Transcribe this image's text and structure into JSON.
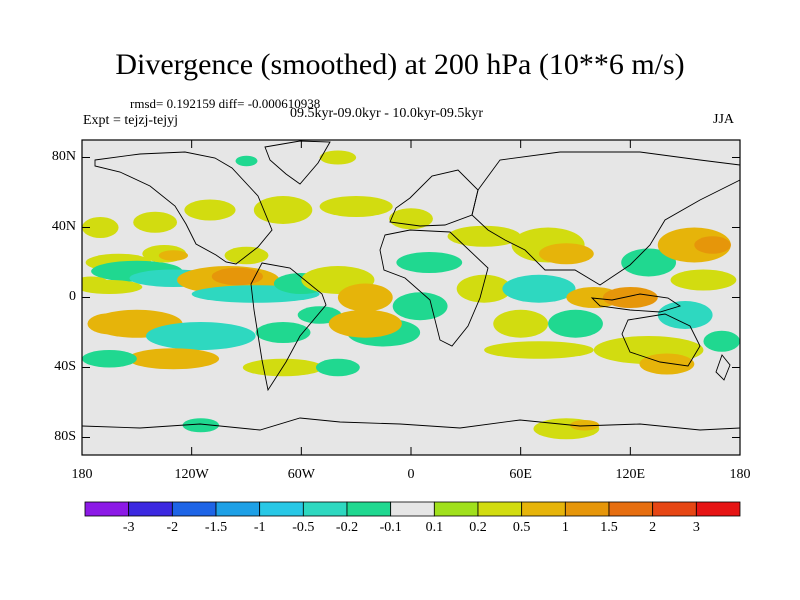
{
  "title": "Divergence (smoothed) at 200 hPa (10**6 m/s)",
  "stats": "rmsd= 0.192159 diff= -0.000610938",
  "subtitle": "09.5kyr-09.0kyr - 10.0kyr-09.5kyr",
  "experiment": "Expt = tejzj-tejyj",
  "season": "JJA",
  "map": {
    "projection": "cylindrical-equidistant",
    "lon_range": [
      -180,
      180
    ],
    "lat_range": [
      -90,
      90
    ],
    "background_color": "#e6e6e6",
    "lat_ticks": [
      {
        "lat": 80,
        "label": "80N"
      },
      {
        "lat": 40,
        "label": "40N"
      },
      {
        "lat": 0,
        "label": "0"
      },
      {
        "lat": -40,
        "label": "40S"
      },
      {
        "lat": -80,
        "label": "80S"
      }
    ],
    "lon_ticks": [
      {
        "lon": -180,
        "label": "180"
      },
      {
        "lon": -120,
        "label": "120W"
      },
      {
        "lon": -60,
        "label": "60W"
      },
      {
        "lon": 0,
        "label": "0"
      },
      {
        "lon": 60,
        "label": "60E"
      },
      {
        "lon": 120,
        "label": "120E"
      },
      {
        "lon": 180,
        "label": "180"
      }
    ]
  },
  "colorbar": {
    "colors": [
      "#8c1ae6",
      "#3c28e0",
      "#1e64e6",
      "#1ea0e6",
      "#28c8e6",
      "#2ed8c0",
      "#20d890",
      "#e6e6e6",
      "#a0e01c",
      "#d2dc10",
      "#e6b40a",
      "#e6960a",
      "#e66e10",
      "#e64614",
      "#e61414"
    ],
    "labels": [
      "-3",
      "-2",
      "-1.5",
      "-1",
      "-0.5",
      "-0.2",
      "-0.1",
      "0.1",
      "0.2",
      "0.5",
      "1",
      "1.5",
      "2",
      "3"
    ]
  },
  "field_blobs": [
    {
      "lon": -160,
      "lat": 20,
      "rlon": 18,
      "rlat": 5,
      "level": 0.2
    },
    {
      "lon": -150,
      "lat": 15,
      "rlon": 25,
      "rlat": 6,
      "level": -0.2
    },
    {
      "lon": -165,
      "lat": 6,
      "rlon": 18,
      "rlat": 4,
      "level": 0.2
    },
    {
      "lon": -175,
      "lat": 8,
      "rlon": 10,
      "rlat": 4,
      "level": 0.2
    },
    {
      "lon": -130,
      "lat": 11,
      "rlon": 24,
      "rlat": 5,
      "level": -0.5
    },
    {
      "lon": -100,
      "lat": 10,
      "rlon": 28,
      "rlat": 8,
      "level": 0.5
    },
    {
      "lon": -95,
      "lat": 12,
      "rlon": 14,
      "rlat": 5,
      "level": 1
    },
    {
      "lon": -90,
      "lat": 24,
      "rlon": 12,
      "rlat": 5,
      "level": 0.2
    },
    {
      "lon": -135,
      "lat": 25,
      "rlon": 12,
      "rlat": 5,
      "level": 0.2
    },
    {
      "lon": -130,
      "lat": 24,
      "rlon": 8,
      "rlat": 3,
      "level": 0.5
    },
    {
      "lon": -170,
      "lat": 40,
      "rlon": 10,
      "rlat": 6,
      "level": 0.2
    },
    {
      "lon": -140,
      "lat": 43,
      "rlon": 12,
      "rlat": 6,
      "level": 0.2
    },
    {
      "lon": -110,
      "lat": 50,
      "rlon": 14,
      "rlat": 6,
      "level": 0.2
    },
    {
      "lon": -70,
      "lat": 50,
      "rlon": 16,
      "rlat": 8,
      "level": 0.2
    },
    {
      "lon": -30,
      "lat": 52,
      "rlon": 20,
      "rlat": 6,
      "level": 0.2
    },
    {
      "lon": -85,
      "lat": 2,
      "rlon": 35,
      "rlat": 5,
      "level": -0.5
    },
    {
      "lon": -60,
      "lat": 8,
      "rlon": 15,
      "rlat": 6,
      "level": -0.2
    },
    {
      "lon": -150,
      "lat": -15,
      "rlon": 25,
      "rlat": 8,
      "level": 0.5
    },
    {
      "lon": -165,
      "lat": -15,
      "rlon": 12,
      "rlat": 6,
      "level": 0.5
    },
    {
      "lon": -115,
      "lat": -22,
      "rlon": 30,
      "rlat": 8,
      "level": -0.5
    },
    {
      "lon": -130,
      "lat": -35,
      "rlon": 25,
      "rlat": 6,
      "level": 0.5
    },
    {
      "lon": -165,
      "lat": -35,
      "rlon": 15,
      "rlat": 5,
      "level": -0.2
    },
    {
      "lon": -70,
      "lat": -20,
      "rlon": 15,
      "rlat": 6,
      "level": -0.2
    },
    {
      "lon": -50,
      "lat": -10,
      "rlon": 12,
      "rlat": 5,
      "level": -0.2
    },
    {
      "lon": -70,
      "lat": -40,
      "rlon": 22,
      "rlat": 5,
      "level": 0.2
    },
    {
      "lon": -40,
      "lat": -40,
      "rlon": 12,
      "rlat": 5,
      "level": -0.2
    },
    {
      "lon": -40,
      "lat": 10,
      "rlon": 20,
      "rlat": 8,
      "level": 0.2
    },
    {
      "lon": -25,
      "lat": 0,
      "rlon": 15,
      "rlat": 8,
      "level": 0.5
    },
    {
      "lon": -15,
      "lat": -20,
      "rlon": 20,
      "rlat": 8,
      "level": -0.2
    },
    {
      "lon": -25,
      "lat": -15,
      "rlon": 20,
      "rlat": 8,
      "level": 0.5
    },
    {
      "lon": 5,
      "lat": -5,
      "rlon": 15,
      "rlat": 8,
      "level": -0.2
    },
    {
      "lon": 10,
      "lat": 20,
      "rlon": 18,
      "rlat": 6,
      "level": -0.2
    },
    {
      "lon": 0,
      "lat": 45,
      "rlon": 12,
      "rlat": 6,
      "level": 0.2
    },
    {
      "lon": 40,
      "lat": 35,
      "rlon": 20,
      "rlat": 6,
      "level": 0.2
    },
    {
      "lon": 40,
      "lat": 5,
      "rlon": 15,
      "rlat": 8,
      "level": 0.2
    },
    {
      "lon": 75,
      "lat": 30,
      "rlon": 20,
      "rlat": 10,
      "level": 0.2
    },
    {
      "lon": 85,
      "lat": 25,
      "rlon": 15,
      "rlat": 6,
      "level": 0.5
    },
    {
      "lon": 70,
      "lat": 5,
      "rlon": 20,
      "rlat": 8,
      "level": -0.5
    },
    {
      "lon": 60,
      "lat": -15,
      "rlon": 15,
      "rlat": 8,
      "level": 0.2
    },
    {
      "lon": 90,
      "lat": -15,
      "rlon": 15,
      "rlat": 8,
      "level": -0.2
    },
    {
      "lon": 70,
      "lat": -30,
      "rlon": 30,
      "rlat": 5,
      "level": 0.2
    },
    {
      "lon": 100,
      "lat": 0,
      "rlon": 15,
      "rlat": 6,
      "level": 0.5
    },
    {
      "lon": 120,
      "lat": 0,
      "rlon": 15,
      "rlat": 6,
      "level": 1
    },
    {
      "lon": 130,
      "lat": 20,
      "rlon": 15,
      "rlat": 8,
      "level": -0.2
    },
    {
      "lon": 155,
      "lat": 30,
      "rlon": 20,
      "rlat": 10,
      "level": 0.5
    },
    {
      "lon": 165,
      "lat": 30,
      "rlon": 10,
      "rlat": 5,
      "level": 1
    },
    {
      "lon": 160,
      "lat": 10,
      "rlon": 18,
      "rlat": 6,
      "level": 0.2
    },
    {
      "lon": 150,
      "lat": -10,
      "rlon": 15,
      "rlat": 8,
      "level": -0.5
    },
    {
      "lon": 130,
      "lat": -30,
      "rlon": 30,
      "rlat": 8,
      "level": 0.2
    },
    {
      "lon": 140,
      "lat": -38,
      "rlon": 15,
      "rlat": 6,
      "level": 0.5
    },
    {
      "lon": 170,
      "lat": -25,
      "rlon": 10,
      "rlat": 6,
      "level": -0.2
    },
    {
      "lon": 85,
      "lat": -75,
      "rlon": 18,
      "rlat": 6,
      "level": 0.2
    },
    {
      "lon": 95,
      "lat": -73,
      "rlon": 8,
      "rlat": 3,
      "level": 0.5
    },
    {
      "lon": -115,
      "lat": -73,
      "rlon": 10,
      "rlat": 4,
      "level": -0.2
    },
    {
      "lon": -40,
      "lat": 80,
      "rlon": 10,
      "rlat": 4,
      "level": 0.2
    },
    {
      "lon": -90,
      "lat": 78,
      "rlon": 6,
      "rlat": 3,
      "level": -0.2
    }
  ]
}
